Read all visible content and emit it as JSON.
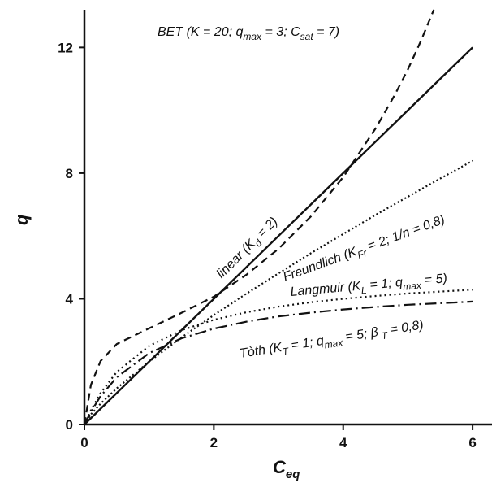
{
  "chart_data": {
    "type": "line",
    "xlabel": "C",
    "xlabel_sub": "eq",
    "ylabel": "q",
    "xlim": [
      0,
      6.3
    ],
    "ylim": [
      0,
      13.2
    ],
    "x_ticks": [
      0,
      2,
      4,
      6
    ],
    "y_ticks": [
      0,
      4,
      8,
      12
    ],
    "grid": false,
    "series": [
      {
        "name": "linear",
        "style": "solid",
        "color": "#111111",
        "x": [
          0,
          1,
          2,
          3,
          4,
          5,
          6
        ],
        "y": [
          0,
          2,
          4,
          6,
          8,
          10,
          12
        ]
      },
      {
        "name": "BET",
        "style": "dashed",
        "color": "#111111",
        "x": [
          0,
          0.1,
          0.25,
          0.5,
          1,
          1.5,
          2,
          2.5,
          3,
          3.5,
          4,
          4.5,
          4.8,
          5,
          5.2,
          5.4
        ],
        "y": [
          0,
          1.26,
          2.02,
          2.56,
          3.06,
          3.55,
          4.07,
          4.76,
          5.59,
          6.62,
          7.87,
          9.42,
          10.5,
          11.3,
          12.2,
          13.2
        ]
      },
      {
        "name": "Freundlich",
        "style": "dotted",
        "color": "#111111",
        "x": [
          0,
          0.1,
          0.25,
          0.5,
          1,
          1.5,
          2,
          2.5,
          3,
          3.5,
          4,
          4.5,
          5,
          5.5,
          6
        ],
        "y": [
          0,
          0.32,
          0.66,
          1.15,
          2.0,
          2.77,
          3.48,
          4.16,
          4.81,
          5.45,
          6.06,
          6.67,
          7.25,
          7.83,
          8.39
        ]
      },
      {
        "name": "Langmuir",
        "style": "short-dotted",
        "color": "#111111",
        "x": [
          0,
          0.1,
          0.25,
          0.5,
          1,
          1.5,
          2,
          2.5,
          3,
          3.5,
          4,
          4.5,
          5,
          5.5,
          6
        ],
        "y": [
          0,
          0.45,
          1.0,
          1.67,
          2.5,
          3.0,
          3.33,
          3.57,
          3.75,
          3.89,
          4.0,
          4.09,
          4.17,
          4.23,
          4.29
        ]
      },
      {
        "name": "Toth",
        "style": "dash-dot",
        "color": "#111111",
        "x": [
          0,
          0.1,
          0.25,
          0.5,
          1,
          1.5,
          2,
          2.5,
          3,
          3.5,
          4,
          4.5,
          5,
          5.5,
          6
        ],
        "y": [
          0,
          0.4,
          0.9,
          1.5,
          2.27,
          2.74,
          3.05,
          3.27,
          3.44,
          3.56,
          3.66,
          3.74,
          3.81,
          3.86,
          3.91
        ]
      }
    ],
    "annotations": {
      "bet": {
        "head": "BET (K = 20; q",
        "sub1": "max",
        "mid": " = 3; C",
        "sub2": "sat",
        "tail": " = 7)"
      },
      "linear": {
        "head": "linear (K",
        "sub": "d",
        "tail": " = 2)"
      },
      "freundlich": {
        "head": "Freundlich (K",
        "sub": "Fr",
        "tail": " = 2; 1/n = 0,8)"
      },
      "langmuir": {
        "head": "Langmuir (K",
        "sub1": "L",
        "mid": " = 1; q",
        "sub2": "max",
        "tail": " = 5)"
      },
      "toth": {
        "head": "Tòth (K",
        "sub1": "T",
        "mid": " = 1; q",
        "sub2": "max",
        "mid2": " = 5; β",
        "sub3": " T",
        "tail": " = 0,8)"
      }
    }
  }
}
